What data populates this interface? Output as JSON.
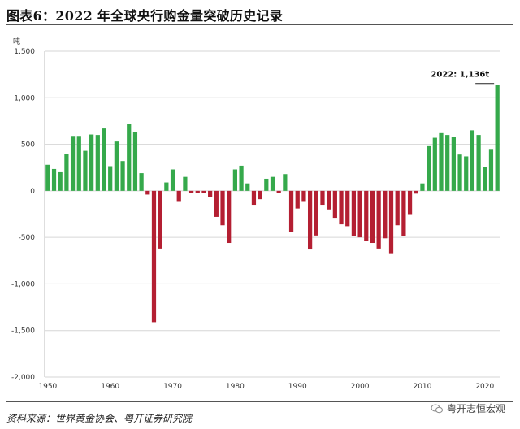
{
  "header": {
    "title": "图表6：2022 年全球央行购金量突破历史记录"
  },
  "footer": {
    "source": "资料来源：世界黄金协会、粤开证券研究院",
    "watermark": "粤开志恒宏观"
  },
  "chart_data": {
    "type": "bar",
    "ylabel": "吨",
    "ylim": [
      -2000,
      1500
    ],
    "yticks": [
      "1,500",
      "1,000",
      "500",
      "0",
      "-500",
      "-1,000",
      "-1,500",
      "-2,000"
    ],
    "xticks": [
      "1950",
      "1960",
      "1970",
      "1980",
      "1990",
      "2000",
      "2010",
      "2020"
    ],
    "grid": true,
    "colors": {
      "positive": "#35a94b",
      "negative": "#b41f32"
    },
    "annotation": "2022: 1,136t",
    "x": [
      1950,
      1951,
      1952,
      1953,
      1954,
      1955,
      1956,
      1957,
      1958,
      1959,
      1960,
      1961,
      1962,
      1963,
      1964,
      1965,
      1966,
      1967,
      1968,
      1969,
      1970,
      1971,
      1972,
      1973,
      1974,
      1975,
      1976,
      1977,
      1978,
      1979,
      1980,
      1981,
      1982,
      1983,
      1984,
      1985,
      1986,
      1987,
      1988,
      1989,
      1990,
      1991,
      1992,
      1993,
      1994,
      1995,
      1996,
      1997,
      1998,
      1999,
      2000,
      2001,
      2002,
      2003,
      2004,
      2005,
      2006,
      2007,
      2008,
      2009,
      2010,
      2011,
      2012,
      2013,
      2014,
      2015,
      2016,
      2017,
      2018,
      2019,
      2020,
      2021,
      2022
    ],
    "values": [
      280,
      235,
      200,
      395,
      590,
      590,
      430,
      605,
      600,
      670,
      265,
      530,
      320,
      720,
      630,
      190,
      -40,
      -1410,
      -620,
      90,
      230,
      -110,
      150,
      -20,
      -20,
      -20,
      -70,
      -280,
      -370,
      -560,
      230,
      270,
      80,
      -150,
      -90,
      130,
      150,
      -20,
      180,
      -440,
      -190,
      -110,
      -630,
      -480,
      -150,
      -200,
      -290,
      -360,
      -380,
      -490,
      -500,
      -540,
      -560,
      -620,
      -510,
      -670,
      -370,
      -490,
      -250,
      -30,
      80,
      480,
      570,
      620,
      600,
      580,
      390,
      370,
      650,
      600,
      260,
      450,
      1136
    ]
  }
}
